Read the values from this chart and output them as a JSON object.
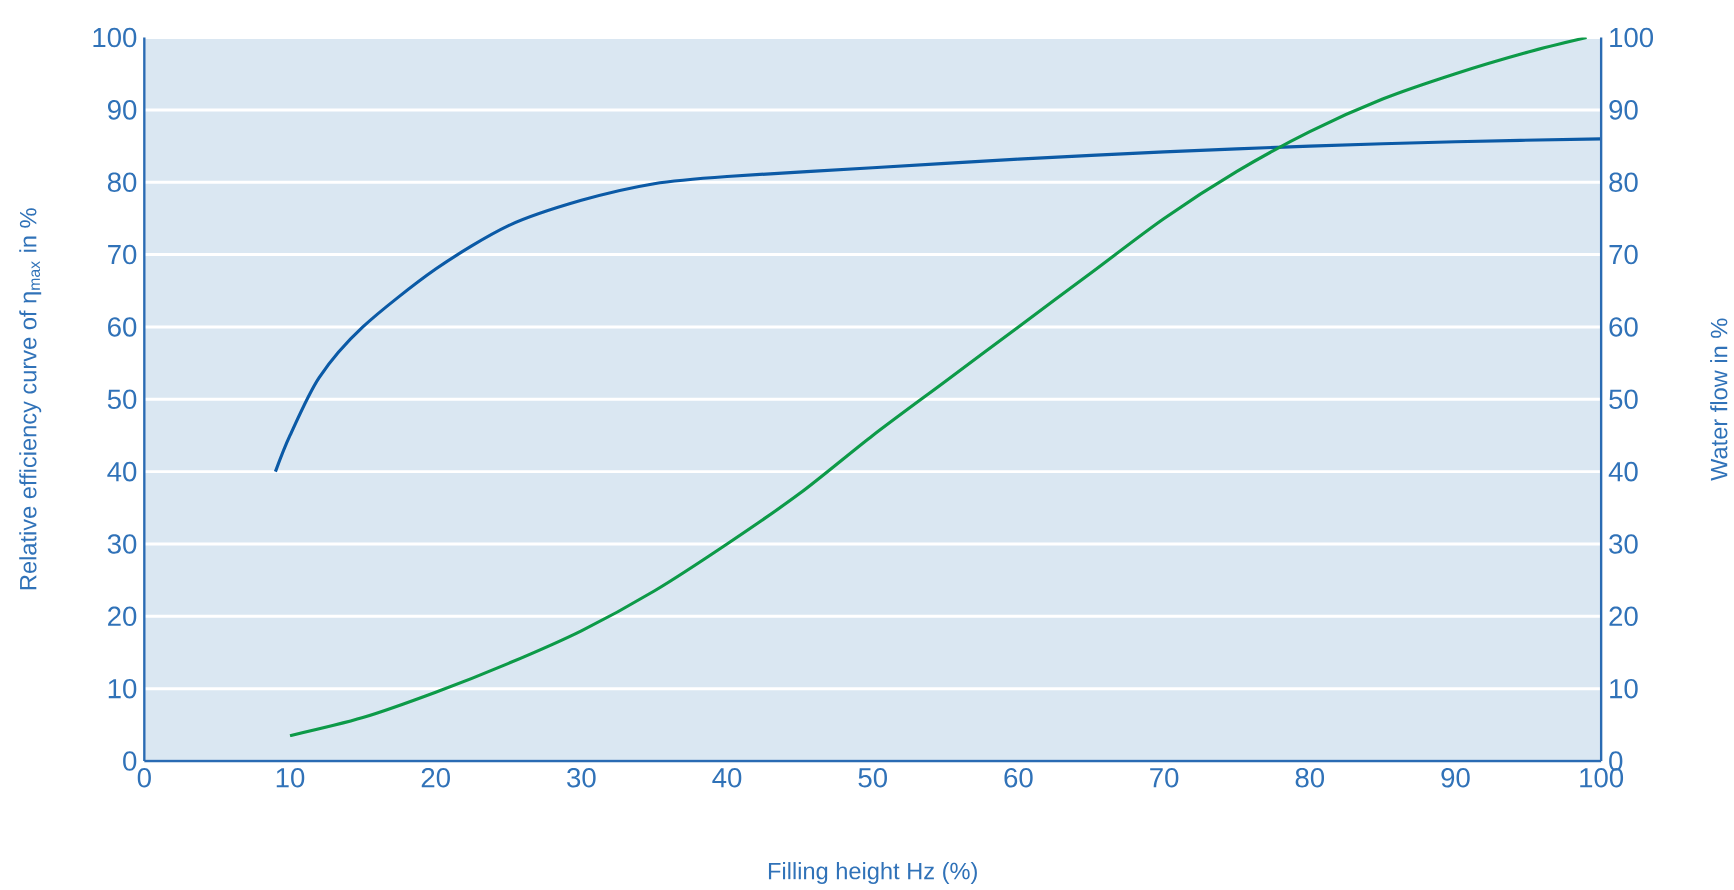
{
  "chart_data": {
    "type": "line",
    "xlabel": "Filling height Hz (%)",
    "ylabel": "Relative efficiency curve of η$_{max}$ in %",
    "y2label": "Water flow in %",
    "xlim": [
      0,
      100
    ],
    "xticks": [
      0,
      10,
      20,
      30,
      40,
      50,
      60,
      70,
      80,
      90,
      100
    ],
    "ylim": [
      0,
      100
    ],
    "yticks": [
      0,
      10,
      20,
      30,
      40,
      50,
      60,
      70,
      80,
      90,
      100
    ],
    "y2lim": [
      0,
      100
    ],
    "y2ticks": [
      0,
      10,
      20,
      30,
      40,
      50,
      60,
      70,
      80,
      90,
      100
    ],
    "grid": "y",
    "marker": "none",
    "line_style": "solid",
    "series": [
      {
        "color": "#0b5aa6",
        "x": [
          9,
          10,
          12,
          15,
          20,
          25,
          30,
          35,
          40,
          50,
          60,
          70,
          80,
          90,
          100
        ],
        "values": [
          40,
          45,
          53,
          60,
          68,
          74,
          77.5,
          79.8,
          80.8,
          82,
          83.2,
          84.2,
          85,
          85.6,
          86
        ]
      },
      {
        "color": "#0d9a48",
        "axis": "y2",
        "x": [
          10,
          15,
          20,
          25,
          30,
          35,
          40,
          45,
          50,
          55,
          60,
          65,
          70,
          75,
          80,
          85,
          90,
          95,
          99
        ],
        "values": [
          3.5,
          6,
          9.5,
          13.5,
          18,
          23.5,
          30,
          37,
          45,
          52.5,
          60,
          67.5,
          75,
          81.5,
          87,
          91.5,
          95,
          98,
          100
        ]
      }
    ]
  }
}
